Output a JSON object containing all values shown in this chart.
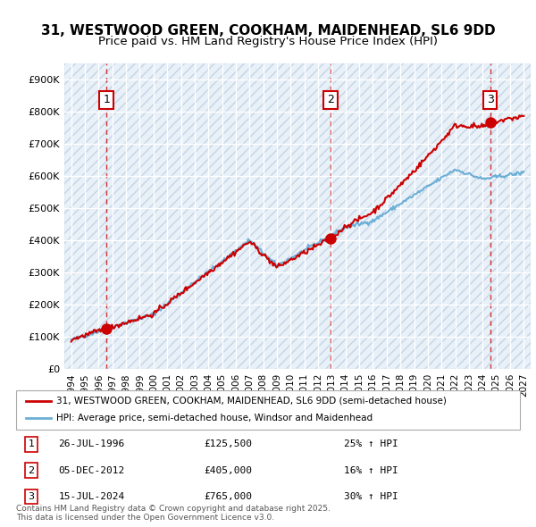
{
  "title_line1": "31, WESTWOOD GREEN, COOKHAM, MAIDENHEAD, SL6 9DD",
  "title_line2": "Price paid vs. HM Land Registry's House Price Index (HPI)",
  "ylabel": "",
  "xlim_start": 1993.5,
  "xlim_end": 2027.5,
  "ylim_min": 0,
  "ylim_max": 950000,
  "ytick_values": [
    0,
    100000,
    200000,
    300000,
    400000,
    500000,
    600000,
    700000,
    800000,
    900000
  ],
  "ytick_labels": [
    "£0",
    "£100K",
    "£200K",
    "£300K",
    "£400K",
    "£500K",
    "£600K",
    "£700K",
    "£800K",
    "£900K"
  ],
  "xtick_years": [
    1994,
    1995,
    1996,
    1997,
    1998,
    1999,
    2000,
    2001,
    2002,
    2003,
    2004,
    2005,
    2006,
    2007,
    2008,
    2009,
    2010,
    2011,
    2012,
    2013,
    2014,
    2015,
    2016,
    2017,
    2018,
    2019,
    2020,
    2021,
    2022,
    2023,
    2024,
    2025,
    2026,
    2027
  ],
  "hpi_color": "#6baed6",
  "price_color": "#cc0000",
  "sale_marker_color": "#cc0000",
  "sale_dashed_color": "#cc0000",
  "background_plot": "#e8f0f8",
  "hatch_color": "#c8d8e8",
  "grid_color": "#ffffff",
  "sales": [
    {
      "year": 1996.57,
      "price": 125500,
      "label": "1"
    },
    {
      "year": 2012.92,
      "price": 405000,
      "label": "2"
    },
    {
      "year": 2024.54,
      "price": 765000,
      "label": "3"
    }
  ],
  "legend_line1": "31, WESTWOOD GREEN, COOKHAM, MAIDENHEAD, SL6 9DD (semi-detached house)",
  "legend_line2": "HPI: Average price, semi-detached house, Windsor and Maidenhead",
  "table_entries": [
    {
      "num": "1",
      "date": "26-JUL-1996",
      "price": "£125,500",
      "hpi": "25% ↑ HPI"
    },
    {
      "num": "2",
      "date": "05-DEC-2012",
      "price": "£405,000",
      "hpi": "16% ↑ HPI"
    },
    {
      "num": "3",
      "date": "15-JUL-2024",
      "price": "£765,000",
      "hpi": "30% ↑ HPI"
    }
  ],
  "footnote": "Contains HM Land Registry data © Crown copyright and database right 2025.\nThis data is licensed under the Open Government Licence v3.0."
}
